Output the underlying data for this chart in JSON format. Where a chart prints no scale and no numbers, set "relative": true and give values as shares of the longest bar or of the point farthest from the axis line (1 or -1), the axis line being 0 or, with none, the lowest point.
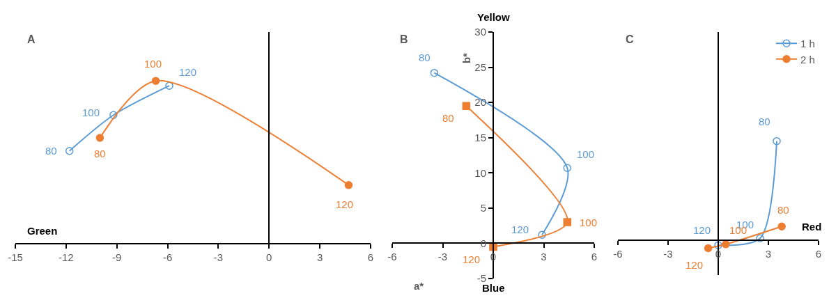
{
  "chart_data": [
    {
      "type": "line",
      "title": "A",
      "xlabel": "Green",
      "relative": true,
      "xlim": [
        -15,
        6
      ],
      "xticks": [
        -15,
        -12,
        -9,
        -6,
        -3,
        0,
        3,
        6
      ],
      "series": [
        {
          "color": "#5b9bd5",
          "marker": "circle",
          "x": [
            -11.8,
            -9.2,
            -5.9
          ],
          "values": [
            0.57,
            0.79,
            0.97
          ]
        },
        {
          "color": "#ed7d31",
          "marker": "circle",
          "x": [
            -10,
            -6.7,
            4.7
          ],
          "values": [
            0.65,
            1,
            0.36
          ]
        }
      ],
      "annotations": [
        {
          "text": "80",
          "x": -11.8,
          "y": 0.57
        },
        {
          "text": "100",
          "x": -9.2,
          "y": 0.79
        },
        {
          "text": "120",
          "x": -5.9,
          "y": 0.97
        },
        {
          "text": "80",
          "x": -10,
          "y": 0.65
        },
        {
          "text": "100",
          "x": -6.7,
          "y": 1
        },
        {
          "text": "120",
          "x": 4.7,
          "y": 0.36
        }
      ]
    },
    {
      "type": "line",
      "title": "B",
      "xlabel": "a*",
      "ylabel": "b*",
      "xlim": [
        -6,
        6
      ],
      "xticks": [
        -6,
        -3,
        0,
        3,
        6
      ],
      "ylim": [
        -5,
        30
      ],
      "yticks": [
        -5,
        0,
        5,
        10,
        15,
        20,
        25,
        30
      ],
      "series": [
        {
          "color": "#5b9bd5",
          "marker": "circle",
          "x": [
            -3.5,
            4.4,
            2.9
          ],
          "values": [
            24.2,
            10.7,
            1.2
          ]
        },
        {
          "color": "#ed7d31",
          "marker": "square",
          "x": [
            -1.6,
            4.4,
            0
          ],
          "values": [
            19.5,
            3,
            -0.5
          ]
        }
      ],
      "annotations": [
        "Yellow",
        "Blue",
        {
          "text": "80",
          "x": -3.5,
          "y": 24.2
        },
        {
          "text": "100",
          "x": 4.4,
          "y": 10.7
        },
        {
          "text": "120",
          "x": 2.9,
          "y": 1.2
        },
        {
          "text": "80",
          "x": -1.6,
          "y": 19.5
        },
        {
          "text": "100",
          "x": 4.4,
          "y": 3
        },
        {
          "text": "120",
          "x": 0,
          "y": -0.5
        }
      ]
    },
    {
      "type": "line",
      "title": "C",
      "xlabel": "Red",
      "relative": true,
      "legend": "top right",
      "xlim": [
        -6,
        6
      ],
      "xticks": [
        -6,
        -3,
        0,
        3,
        6
      ],
      "series": [
        {
          "name": "1 h",
          "color": "#5b9bd5",
          "marker": "circle",
          "x": [
            3.5,
            2.5,
            0
          ],
          "values": [
            1,
            0.02,
            -0.05
          ]
        },
        {
          "name": "2 h",
          "color": "#ed7d31",
          "marker": "circle",
          "x": [
            3.8,
            0.45,
            -0.6
          ],
          "values": [
            0.14,
            -0.04,
            -0.08
          ]
        }
      ],
      "annotations": [
        {
          "text": "80",
          "x": 3.5,
          "y": 1
        },
        {
          "text": "100",
          "x": 2.5,
          "y": 0.02
        },
        {
          "text": "120",
          "x": 0,
          "y": -0.05
        },
        {
          "text": "80",
          "x": 3.8,
          "y": 0.14
        },
        {
          "text": "100",
          "x": 0.45,
          "y": -0.04
        },
        {
          "text": "120",
          "x": -0.6,
          "y": -0.08
        }
      ]
    }
  ]
}
